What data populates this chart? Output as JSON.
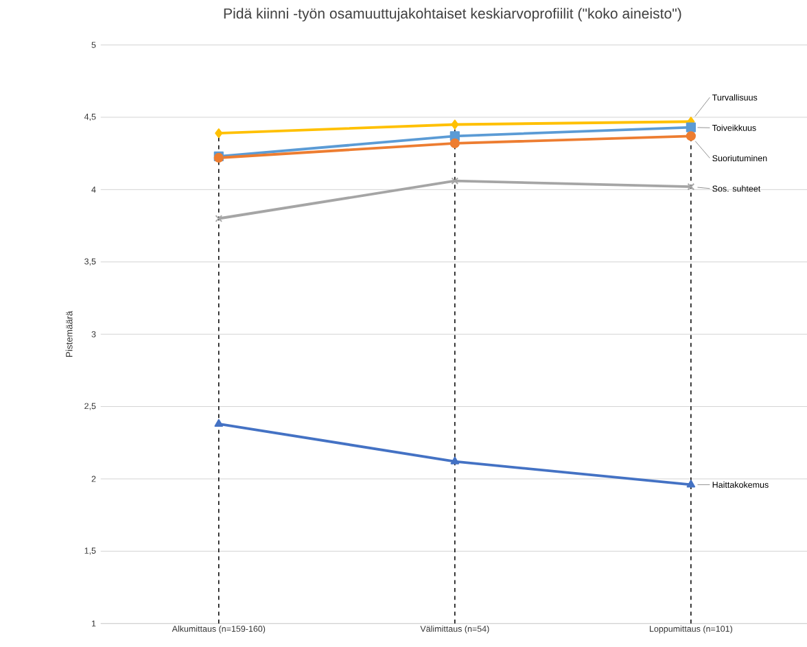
{
  "chart_data": {
    "type": "line",
    "title": "Pidä kiinni -työn osamuuttujakohtaiset keskiarvoprofiilit (\"koko aineisto\")",
    "ylabel": "Pistemäärä",
    "categories": [
      "Alkumittaus (n=159-160)",
      "Välimittaus (n=54)",
      "Loppumittaus (n=101)"
    ],
    "series": [
      {
        "name": "Turvallisuus",
        "color": "#ffc000",
        "marker": "diamond",
        "values": [
          4.39,
          4.45,
          4.47
        ]
      },
      {
        "name": "Toiveikkuus",
        "color": "#5b9bd5",
        "marker": "square",
        "values": [
          4.23,
          4.37,
          4.43
        ]
      },
      {
        "name": "Suoriutuminen",
        "color": "#ed7d31",
        "marker": "circle",
        "values": [
          4.22,
          4.32,
          4.37
        ]
      },
      {
        "name": "Sos. suhteet",
        "color": "#a5a5a5",
        "marker": "cross",
        "values": [
          3.8,
          4.06,
          4.02
        ]
      },
      {
        "name": "Haittakokemus",
        "color": "#4472c4",
        "marker": "triangle",
        "values": [
          2.38,
          2.12,
          1.96
        ]
      }
    ],
    "ylim": [
      1,
      5
    ],
    "yticks": [
      1,
      {
        "value": 1.5,
        "label": "1,5"
      },
      2,
      {
        "value": 2.5,
        "label": "2,5"
      },
      3,
      {
        "value": 3.5,
        "label": "3,5"
      },
      4,
      {
        "value": 4.5,
        "label": "4,5"
      },
      5
    ],
    "grid": "y",
    "ref_lines": [
      {
        "axis": "x",
        "value": "Alkumittaus (n=159-160)",
        "color": "#000000",
        "line_style": "dashed"
      },
      {
        "axis": "x",
        "value": "Välimittaus (n=54)",
        "color": "#000000",
        "line_style": "dashed"
      },
      {
        "axis": "x",
        "value": "Loppumittaus (n=101)",
        "color": "#000000",
        "line_style": "dashed"
      }
    ]
  }
}
